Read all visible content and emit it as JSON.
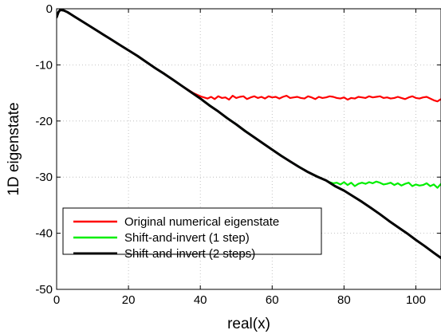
{
  "chart_data": {
    "type": "line",
    "title": "",
    "xlabel": "real(x)",
    "ylabel": "1D eigenstate",
    "xlim": [
      0,
      107
    ],
    "ylim": [
      -50,
      0
    ],
    "xticks": [
      0,
      20,
      40,
      60,
      80,
      100
    ],
    "yticks": [
      -50,
      -40,
      -30,
      -20,
      -10,
      0
    ],
    "x_tick_labels": [
      "0",
      "20",
      "40",
      "60",
      "80",
      "100"
    ],
    "y_tick_labels": [
      "-50",
      "-40",
      "-30",
      "-20",
      "-10",
      "0"
    ],
    "grid": true,
    "legend_position": "bottom-left",
    "series": [
      {
        "name": "Original numerical eigenstate",
        "color": "#ff0000",
        "x": [
          0,
          0.5,
          1,
          2,
          3,
          5,
          10,
          15,
          20,
          25,
          30,
          35,
          38,
          40,
          41,
          42,
          43,
          44,
          45,
          46,
          47,
          48,
          49,
          50,
          51,
          52,
          53,
          54,
          55,
          56,
          57,
          58,
          59,
          60,
          61,
          62,
          63,
          64,
          65,
          66,
          67,
          68,
          69,
          70,
          71,
          72,
          73,
          74,
          75,
          76,
          77,
          78,
          79,
          80,
          81,
          82,
          83,
          84,
          85,
          86,
          87,
          88,
          89,
          90,
          91,
          92,
          93,
          94,
          95,
          96,
          97,
          98,
          99,
          100,
          101,
          102,
          103,
          104,
          105,
          106,
          107
        ],
        "y": [
          -1.5,
          -0.6,
          -0.2,
          -0.3,
          -0.6,
          -1.4,
          -3.4,
          -5.4,
          -7.4,
          -9.5,
          -11.6,
          -13.8,
          -15.0,
          -15.6,
          -15.8,
          -16.0,
          -15.7,
          -16.1,
          -15.6,
          -15.9,
          -15.8,
          -16.2,
          -15.5,
          -15.9,
          -15.7,
          -15.6,
          -16.1,
          -15.8,
          -15.6,
          -15.9,
          -15.7,
          -16.0,
          -15.6,
          -15.8,
          -15.7,
          -16.0,
          -15.7,
          -15.5,
          -15.9,
          -15.8,
          -15.7,
          -15.9,
          -16.0,
          -15.6,
          -15.8,
          -16.1,
          -15.7,
          -15.9,
          -15.8,
          -15.6,
          -15.7,
          -15.9,
          -16.0,
          -15.8,
          -16.2,
          -15.9,
          -16.0,
          -15.7,
          -15.8,
          -15.9,
          -15.6,
          -15.8,
          -15.7,
          -15.6,
          -15.9,
          -15.8,
          -16.0,
          -15.9,
          -15.7,
          -15.9,
          -16.1,
          -15.8,
          -15.6,
          -15.9,
          -16.0,
          -15.8,
          -15.7,
          -16.0,
          -16.3,
          -16.5,
          -16.1
        ]
      },
      {
        "name": "Shift-and-invert (1 step)",
        "color": "#00ee00",
        "x": [
          0,
          0.5,
          1,
          2,
          3,
          5,
          10,
          15,
          20,
          25,
          30,
          35,
          40,
          45,
          50,
          55,
          60,
          65,
          70,
          75,
          76,
          77,
          78,
          79,
          80,
          81,
          82,
          83,
          84,
          85,
          86,
          87,
          88,
          89,
          90,
          91,
          92,
          93,
          94,
          95,
          96,
          97,
          98,
          99,
          100,
          101,
          102,
          103,
          104,
          105,
          106,
          107
        ],
        "y": [
          -1.5,
          -0.6,
          -0.2,
          -0.3,
          -0.6,
          -1.4,
          -3.4,
          -5.4,
          -7.4,
          -9.5,
          -11.6,
          -13.8,
          -16.0,
          -18.3,
          -20.6,
          -22.9,
          -25.1,
          -27.2,
          -29.1,
          -30.6,
          -30.9,
          -31.1,
          -31.0,
          -31.3,
          -30.9,
          -31.4,
          -31.0,
          -31.6,
          -31.2,
          -31.0,
          -31.2,
          -30.9,
          -31.1,
          -30.8,
          -31.0,
          -31.3,
          -31.2,
          -31.0,
          -31.4,
          -31.1,
          -31.5,
          -31.2,
          -31.0,
          -31.6,
          -31.3,
          -31.5,
          -31.4,
          -31.1,
          -31.6,
          -31.3,
          -31.9,
          -31.2
        ]
      },
      {
        "name": "Shift-and-invert (2 steps)",
        "color": "#000000",
        "x": [
          0,
          0.5,
          1,
          2,
          3,
          4,
          5,
          7.5,
          10,
          12.5,
          15,
          17.5,
          20,
          22.5,
          25,
          27.5,
          30,
          32.5,
          35,
          37.5,
          40,
          42.5,
          45,
          47.5,
          50,
          52.5,
          55,
          57.5,
          60,
          62.5,
          65,
          67.5,
          70,
          72.5,
          75,
          77.5,
          80,
          82.5,
          85,
          87.5,
          90,
          92.5,
          95,
          97.5,
          100,
          102.5,
          105,
          107
        ],
        "y": [
          -1.5,
          -0.6,
          -0.2,
          -0.3,
          -0.6,
          -1.0,
          -1.4,
          -2.4,
          -3.4,
          -4.4,
          -5.4,
          -6.4,
          -7.4,
          -8.4,
          -9.5,
          -10.6,
          -11.6,
          -12.7,
          -13.8,
          -14.9,
          -16.0,
          -17.2,
          -18.3,
          -19.5,
          -20.6,
          -21.8,
          -22.9,
          -24.0,
          -25.1,
          -26.2,
          -27.2,
          -28.2,
          -29.1,
          -29.9,
          -30.6,
          -31.6,
          -32.4,
          -33.4,
          -34.4,
          -35.5,
          -36.6,
          -37.8,
          -38.9,
          -40.0,
          -41.2,
          -42.3,
          -43.5,
          -44.4
        ]
      }
    ]
  }
}
